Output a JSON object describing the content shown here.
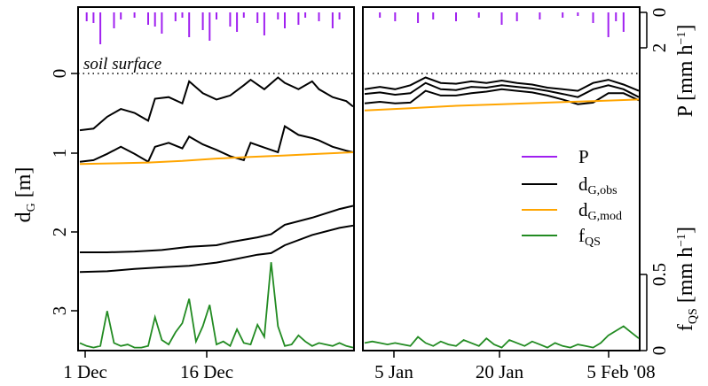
{
  "chart_data": {
    "type": "line",
    "annotation": "soil surface",
    "colors": {
      "P": "#a020f0",
      "dG_obs": "#000000",
      "dG_mod": "#ffa500",
      "fQS": "#228b22"
    },
    "left_axis": {
      "label_main": "d",
      "label_sub": "G",
      "label_unit": " [m]",
      "ticks": [
        "0",
        "1",
        "2",
        "3"
      ],
      "ylim": [
        3.5,
        -0.8
      ],
      "inverted": true
    },
    "right_axis_top": {
      "label_main": "P [mm h",
      "label_sup": "−1",
      "label_end": "]",
      "ticks": [
        "0",
        "2"
      ]
    },
    "right_axis_bottom": {
      "label_main": "f",
      "label_sub": "QS",
      "label_unit": " [mm h",
      "label_sup": "−1",
      "label_end": "]",
      "ticks": [
        "0.5",
        "0"
      ]
    },
    "panels": [
      {
        "x_ticks": [
          "1 Dec",
          "16 Dec"
        ],
        "series": [
          {
            "name": "dG_obs",
            "x": [
              0,
              2,
              4,
              6,
              8,
              10,
              11,
              13,
              15,
              16,
              18,
              20,
              22,
              24,
              25,
              27,
              29,
              30,
              32,
              34,
              35,
              37,
              39,
              40
            ],
            "y": [
              0.72,
              0.7,
              0.55,
              0.45,
              0.5,
              0.6,
              0.32,
              0.3,
              0.38,
              0.1,
              0.25,
              0.33,
              0.28,
              0.15,
              0.08,
              0.2,
              0.05,
              0.12,
              0.2,
              0.1,
              0.2,
              0.3,
              0.35,
              0.42
            ]
          },
          {
            "name": "dG_obs",
            "x": [
              0,
              2,
              4,
              6,
              8,
              10,
              11,
              13,
              15,
              16,
              18,
              20,
              22,
              24,
              25,
              27,
              29,
              30,
              32,
              34,
              35,
              37,
              39,
              40
            ],
            "y": [
              1.12,
              1.1,
              1.02,
              0.93,
              1.02,
              1.12,
              0.93,
              0.88,
              0.95,
              0.8,
              0.9,
              0.97,
              1.05,
              1.1,
              0.88,
              0.94,
              1.0,
              0.67,
              0.78,
              0.82,
              0.85,
              0.93,
              0.98,
              1.0
            ]
          },
          {
            "name": "dG_obs",
            "x": [
              0,
              4,
              8,
              12,
              16,
              20,
              22,
              26,
              28,
              30,
              34,
              38,
              40
            ],
            "y": [
              2.27,
              2.27,
              2.26,
              2.24,
              2.2,
              2.18,
              2.14,
              2.08,
              2.04,
              1.92,
              1.83,
              1.72,
              1.68
            ]
          },
          {
            "name": "dG_obs",
            "x": [
              0,
              4,
              8,
              12,
              16,
              20,
              22,
              26,
              28,
              30,
              34,
              38,
              40
            ],
            "y": [
              2.52,
              2.51,
              2.48,
              2.46,
              2.44,
              2.4,
              2.37,
              2.3,
              2.28,
              2.18,
              2.05,
              1.96,
              1.93
            ]
          },
          {
            "name": "dG_mod",
            "x": [
              0,
              5,
              10,
              15,
              20,
              25,
              30,
              35,
              40
            ],
            "y": [
              1.15,
              1.14,
              1.13,
              1.11,
              1.08,
              1.06,
              1.04,
              1.02,
              1.0
            ]
          }
        ],
        "fQS": {
          "x": [
            0,
            1,
            2,
            3,
            4,
            5,
            6,
            7,
            8,
            9,
            10,
            11,
            12,
            13,
            14,
            15,
            16,
            17,
            18,
            19,
            20,
            21,
            22,
            23,
            24,
            25,
            26,
            27,
            28,
            29,
            30,
            31,
            32,
            33,
            34,
            35,
            36,
            37,
            38,
            39,
            40
          ],
          "y": [
            0.05,
            0.03,
            0.02,
            0.03,
            0.26,
            0.05,
            0.03,
            0.04,
            0.02,
            0.02,
            0.03,
            0.22,
            0.07,
            0.04,
            0.12,
            0.18,
            0.34,
            0.06,
            0.16,
            0.3,
            0.04,
            0.06,
            0.03,
            0.14,
            0.05,
            0.04,
            0.17,
            0.09,
            0.58,
            0.16,
            0.03,
            0.04,
            0.1,
            0.06,
            0.03,
            0.05,
            0.04,
            0.03,
            0.05,
            0.03,
            0.02
          ]
        },
        "P": {
          "x": [
            1,
            2,
            3,
            5,
            6,
            8,
            10,
            11,
            12,
            14,
            15,
            16,
            18,
            19,
            20,
            22,
            23,
            24,
            26,
            27,
            29,
            30,
            32,
            33,
            35,
            37,
            38
          ],
          "y": [
            0.5,
            0.6,
            1.8,
            0.9,
            0.4,
            0.3,
            0.7,
            0.8,
            1.2,
            0.5,
            0.3,
            1.4,
            1.0,
            1.6,
            0.4,
            0.8,
            1.1,
            0.3,
            0.6,
            1.3,
            0.4,
            0.9,
            0.7,
            0.3,
            0.5,
            0.9,
            0.4
          ]
        }
      },
      {
        "x_ticks": [
          "5 Jan",
          "20 Jan",
          "5 Feb '08"
        ],
        "series": [
          {
            "name": "dG_obs",
            "x": [
              0,
              2,
              4,
              6,
              8,
              10,
              12,
              14,
              16,
              18,
              20,
              22,
              24,
              26,
              28,
              30,
              32,
              34,
              36
            ],
            "y": [
              0.2,
              0.17,
              0.2,
              0.15,
              0.05,
              0.12,
              0.13,
              0.1,
              0.12,
              0.09,
              0.12,
              0.14,
              0.18,
              0.2,
              0.22,
              0.12,
              0.08,
              0.14,
              0.22
            ]
          },
          {
            "name": "dG_obs",
            "x": [
              0,
              2,
              4,
              6,
              8,
              10,
              12,
              14,
              16,
              18,
              20,
              22,
              24,
              26,
              28,
              30,
              32,
              34,
              36
            ],
            "y": [
              0.26,
              0.24,
              0.27,
              0.25,
              0.12,
              0.2,
              0.21,
              0.17,
              0.18,
              0.15,
              0.17,
              0.19,
              0.22,
              0.26,
              0.3,
              0.2,
              0.15,
              0.2,
              0.3
            ]
          },
          {
            "name": "dG_obs",
            "x": [
              0,
              2,
              4,
              6,
              8,
              10,
              12,
              14,
              16,
              18,
              20,
              22,
              24,
              26,
              28,
              30,
              32,
              34,
              36
            ],
            "y": [
              0.38,
              0.36,
              0.38,
              0.37,
              0.22,
              0.28,
              0.28,
              0.25,
              0.23,
              0.2,
              0.22,
              0.24,
              0.28,
              0.33,
              0.39,
              0.37,
              0.25,
              0.25,
              0.34
            ]
          },
          {
            "name": "dG_mod",
            "x": [
              0,
              6,
              12,
              18,
              24,
              30,
              36
            ],
            "y": [
              0.47,
              0.44,
              0.41,
              0.39,
              0.37,
              0.35,
              0.33
            ]
          }
        ],
        "fQS": {
          "x": [
            0,
            1,
            2,
            3,
            4,
            5,
            6,
            7,
            8,
            9,
            10,
            11,
            12,
            13,
            14,
            15,
            16,
            17,
            18,
            19,
            20,
            21,
            22,
            23,
            24,
            25,
            26,
            27,
            28,
            29,
            30,
            31,
            32,
            33,
            34,
            35,
            36
          ],
          "y": [
            0.05,
            0.06,
            0.05,
            0.04,
            0.05,
            0.04,
            0.03,
            0.09,
            0.05,
            0.03,
            0.06,
            0.04,
            0.03,
            0.07,
            0.05,
            0.03,
            0.08,
            0.04,
            0.02,
            0.07,
            0.05,
            0.03,
            0.06,
            0.04,
            0.02,
            0.05,
            0.03,
            0.02,
            0.04,
            0.03,
            0.02,
            0.05,
            0.1,
            0.13,
            0.16,
            0.12,
            0.08
          ]
        },
        "P": {
          "x": [
            2,
            4,
            7,
            9,
            12,
            15,
            18,
            20,
            23,
            26,
            28,
            30,
            32,
            33,
            34
          ],
          "y": [
            0.3,
            0.5,
            0.6,
            0.4,
            0.5,
            0.3,
            0.7,
            0.5,
            0.4,
            0.3,
            0.2,
            0.6,
            1.4,
            0.5,
            1.1
          ]
        }
      }
    ],
    "legend": [
      {
        "key": "P",
        "main": "P",
        "sub": ""
      },
      {
        "key": "dG_obs",
        "main": "d",
        "sub": "G,obs"
      },
      {
        "key": "dG_mod",
        "main": "d",
        "sub": "G,mod"
      },
      {
        "key": "fQS",
        "main": "f",
        "sub": "QS"
      }
    ]
  }
}
